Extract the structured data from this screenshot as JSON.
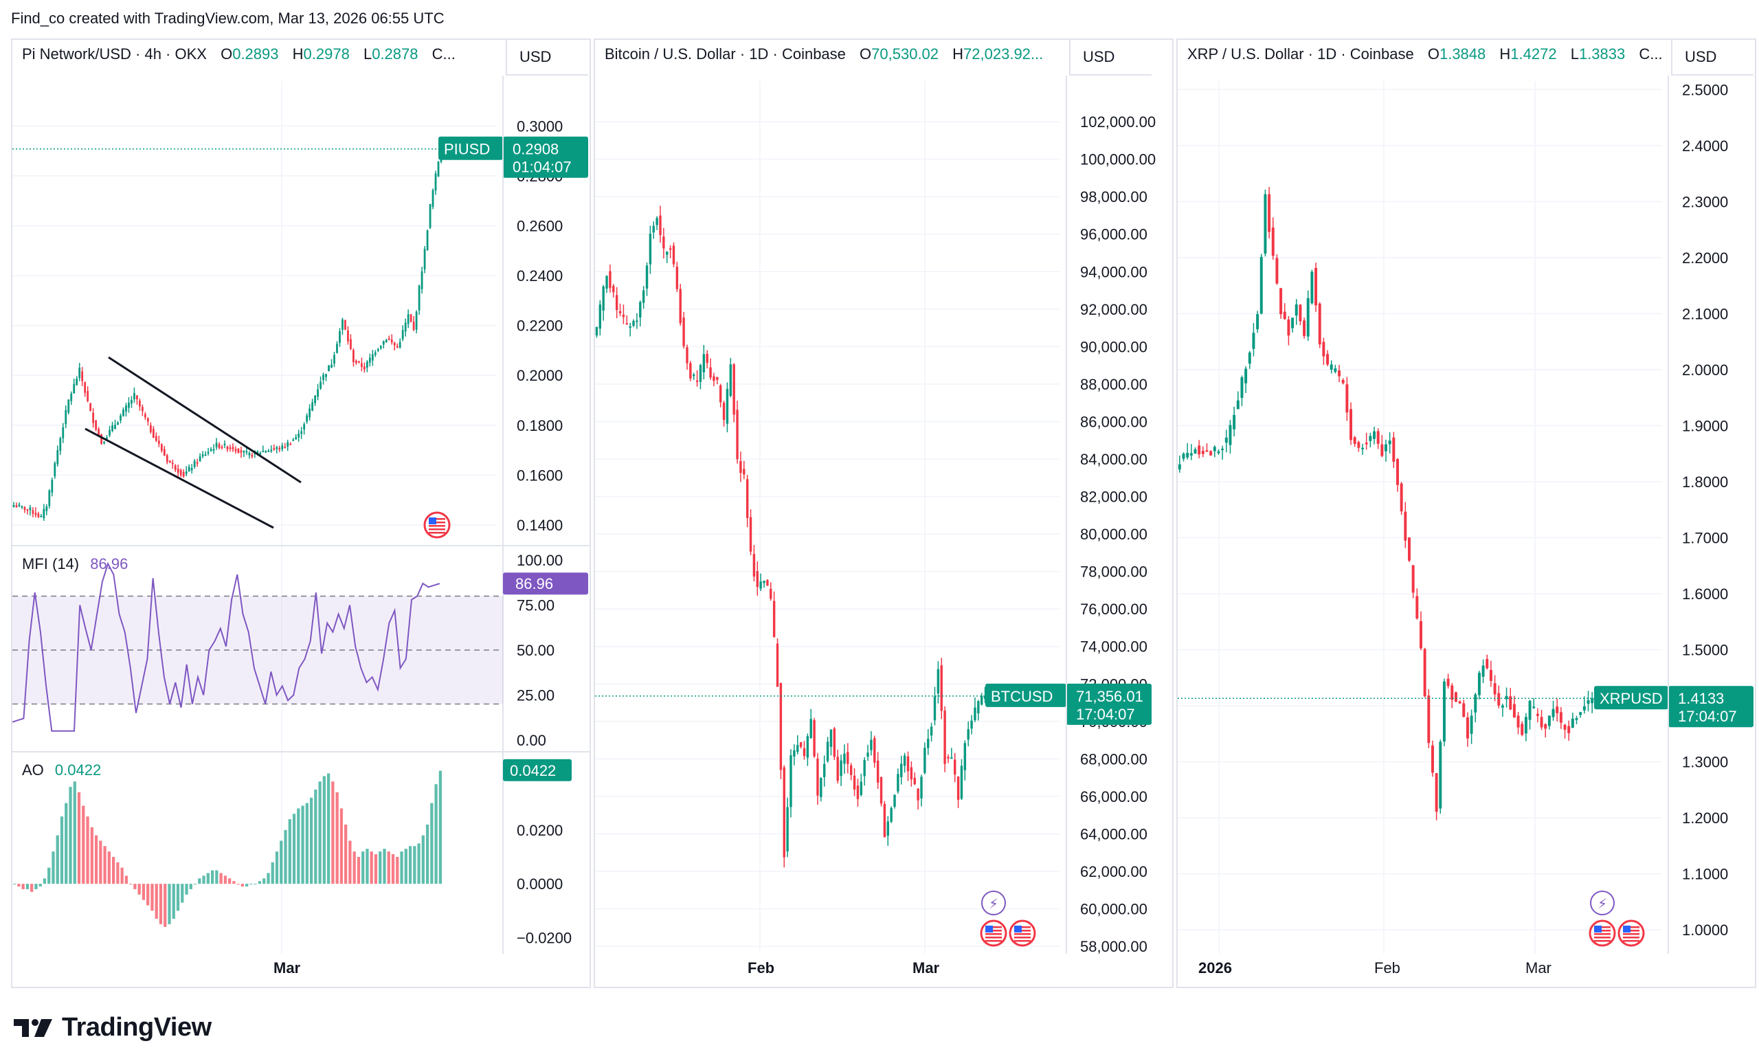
{
  "header": {
    "text": "Find_co created with TradingView.com, Mar 13, 2026 06:55 UTC"
  },
  "footer": {
    "brand": "TradingView"
  },
  "colors": {
    "up": "#089981",
    "down": "#f23645",
    "mfi": "#7e57c2",
    "grid": "#f0f3fa",
    "text": "#131722"
  },
  "panels": [
    {
      "title": "Pi Network/USD · 4h · OKX",
      "ohlc": [
        {
          "k": "O",
          "v": "0.2893"
        },
        {
          "k": "H",
          "v": "0.2978"
        },
        {
          "k": "L",
          "v": "0.2878"
        },
        {
          "k": "C",
          "v": "..."
        }
      ],
      "currency": "USD",
      "ticker": "PIUSD",
      "last_price": "0.2908",
      "countdown": "01:04:07",
      "price_ticks": [
        "0.3000",
        "0.2800",
        "0.2600",
        "0.2400",
        "0.2200",
        "0.2000",
        "0.1800",
        "0.1600",
        "0.1400"
      ],
      "x_ticks": [
        "Mar"
      ],
      "mfi": {
        "label": "MFI (14)",
        "value": "86.96",
        "ticks": [
          "100.00",
          "75.00",
          "50.00",
          "25.00",
          "0.00"
        ]
      },
      "ao": {
        "label": "AO",
        "value": "0.0422",
        "ticks": [
          "0.0200",
          "0.0000",
          "−0.0200"
        ]
      }
    },
    {
      "title": "Bitcoin / U.S. Dollar · 1D · Coinbase",
      "ohlc": [
        {
          "k": "O",
          "v": "70,530.02"
        },
        {
          "k": "H",
          "v": "72,023.92..."
        }
      ],
      "currency": "USD",
      "ticker": "BTCUSD",
      "last_price": "71,356.01",
      "countdown": "17:04:07",
      "price_ticks": [
        "102,000.00",
        "100,000.00",
        "98,000.00",
        "96,000.00",
        "94,000.00",
        "92,000.00",
        "90,000.00",
        "88,000.00",
        "86,000.00",
        "84,000.00",
        "82,000.00",
        "80,000.00",
        "78,000.00",
        "76,000.00",
        "74,000.00",
        "72,000.00",
        "70,000.00",
        "68,000.00",
        "66,000.00",
        "64,000.00",
        "62,000.00",
        "60,000.00",
        "58,000.00"
      ],
      "x_ticks": [
        "Feb",
        "Mar"
      ]
    },
    {
      "title": "XRP / U.S. Dollar · 1D · Coinbase",
      "ohlc": [
        {
          "k": "O",
          "v": "1.3848"
        },
        {
          "k": "H",
          "v": "1.4272"
        },
        {
          "k": "L",
          "v": "1.3833"
        },
        {
          "k": "C",
          "v": "..."
        }
      ],
      "currency": "USD",
      "ticker": "XRPUSD",
      "last_price": "1.4133",
      "countdown": "17:04:07",
      "price_ticks": [
        "2.5000",
        "2.4000",
        "2.3000",
        "2.2000",
        "2.1000",
        "2.0000",
        "1.9000",
        "1.8000",
        "1.7000",
        "1.6000",
        "1.5000",
        "1.4000",
        "1.3000",
        "1.2000",
        "1.1000",
        "1.0000"
      ],
      "x_ticks": [
        "2026",
        "Feb",
        "Mar"
      ]
    }
  ],
  "chart_data": [
    {
      "type": "candlestick",
      "title": "Pi Network/USD · 4h · OKX",
      "ylim": [
        0.132,
        0.318
      ],
      "close_path": [
        [
          0,
          0.148
        ],
        [
          6,
          0.146
        ],
        [
          10,
          0.143
        ],
        [
          12,
          0.148
        ],
        [
          16,
          0.17
        ],
        [
          20,
          0.19
        ],
        [
          24,
          0.202
        ],
        [
          28,
          0.185
        ],
        [
          32,
          0.173
        ],
        [
          38,
          0.182
        ],
        [
          44,
          0.192
        ],
        [
          50,
          0.178
        ],
        [
          56,
          0.166
        ],
        [
          62,
          0.16
        ],
        [
          68,
          0.167
        ],
        [
          74,
          0.172
        ],
        [
          80,
          0.171
        ],
        [
          86,
          0.168
        ],
        [
          92,
          0.17
        ],
        [
          98,
          0.171
        ],
        [
          104,
          0.176
        ],
        [
          108,
          0.186
        ],
        [
          112,
          0.198
        ],
        [
          116,
          0.205
        ],
        [
          120,
          0.222
        ],
        [
          124,
          0.206
        ],
        [
          128,
          0.203
        ],
        [
          132,
          0.21
        ],
        [
          136,
          0.215
        ],
        [
          140,
          0.211
        ],
        [
          144,
          0.224
        ],
        [
          146,
          0.218
        ],
        [
          148,
          0.235
        ],
        [
          150,
          0.25
        ],
        [
          152,
          0.268
        ],
        [
          154,
          0.28
        ],
        [
          156,
          0.292
        ]
      ],
      "last": 0.2908,
      "mfi": {
        "ylim": [
          -5,
          105
        ],
        "path": [
          [
            0,
            10
          ],
          [
            4,
            12
          ],
          [
            6,
            55
          ],
          [
            8,
            82
          ],
          [
            10,
            60
          ],
          [
            12,
            30
          ],
          [
            14,
            5
          ],
          [
            22,
            5
          ],
          [
            24,
            75
          ],
          [
            26,
            62
          ],
          [
            28,
            50
          ],
          [
            32,
            88
          ],
          [
            34,
            98
          ],
          [
            36,
            92
          ],
          [
            38,
            70
          ],
          [
            40,
            60
          ],
          [
            42,
            40
          ],
          [
            44,
            15
          ],
          [
            46,
            30
          ],
          [
            48,
            45
          ],
          [
            50,
            90
          ],
          [
            52,
            60
          ],
          [
            54,
            35
          ],
          [
            56,
            20
          ],
          [
            58,
            32
          ],
          [
            60,
            18
          ],
          [
            62,
            42
          ],
          [
            64,
            20
          ],
          [
            66,
            35
          ],
          [
            68,
            25
          ],
          [
            70,
            50
          ],
          [
            72,
            55
          ],
          [
            74,
            62
          ],
          [
            76,
            52
          ],
          [
            78,
            78
          ],
          [
            80,
            92
          ],
          [
            82,
            70
          ],
          [
            84,
            60
          ],
          [
            86,
            40
          ],
          [
            88,
            30
          ],
          [
            90,
            20
          ],
          [
            92,
            38
          ],
          [
            94,
            25
          ],
          [
            96,
            30
          ],
          [
            98,
            22
          ],
          [
            100,
            25
          ],
          [
            102,
            40
          ],
          [
            104,
            45
          ],
          [
            106,
            55
          ],
          [
            108,
            82
          ],
          [
            110,
            48
          ],
          [
            112,
            65
          ],
          [
            114,
            60
          ],
          [
            116,
            70
          ],
          [
            118,
            62
          ],
          [
            120,
            75
          ],
          [
            122,
            52
          ],
          [
            124,
            40
          ],
          [
            126,
            32
          ],
          [
            128,
            35
          ],
          [
            130,
            28
          ],
          [
            132,
            45
          ],
          [
            134,
            65
          ],
          [
            136,
            72
          ],
          [
            138,
            40
          ],
          [
            140,
            45
          ],
          [
            142,
            78
          ],
          [
            144,
            80
          ],
          [
            146,
            87
          ],
          [
            148,
            85
          ],
          [
            150,
            86
          ],
          [
            152,
            86.96
          ]
        ]
      },
      "ao": {
        "ylim": [
          -0.026,
          0.047
        ],
        "bars": [
          0,
          -0.001,
          -0.002,
          -0.002,
          -0.003,
          -0.002,
          -0.001,
          0.002,
          0.006,
          0.012,
          0.018,
          0.025,
          0.03,
          0.036,
          0.038,
          0.034,
          0.029,
          0.025,
          0.021,
          0.018,
          0.016,
          0.014,
          0.012,
          0.01,
          0.008,
          0.006,
          0.003,
          0.0,
          -0.002,
          -0.004,
          -0.006,
          -0.008,
          -0.01,
          -0.013,
          -0.015,
          -0.016,
          -0.015,
          -0.013,
          -0.01,
          -0.007,
          -0.004,
          -0.002,
          0.0,
          0.002,
          0.003,
          0.004,
          0.005,
          0.005,
          0.004,
          0.003,
          0.002,
          0.001,
          0.0,
          -0.001,
          -0.001,
          0.0,
          0.0,
          0.001,
          0.002,
          0.004,
          0.008,
          0.012,
          0.016,
          0.02,
          0.024,
          0.026,
          0.028,
          0.029,
          0.03,
          0.032,
          0.035,
          0.038,
          0.04,
          0.041,
          0.038,
          0.034,
          0.028,
          0.022,
          0.016,
          0.012,
          0.01,
          0.012,
          0.013,
          0.012,
          0.011,
          0.012,
          0.013,
          0.012,
          0.011,
          0.01,
          0.012,
          0.013,
          0.014,
          0.014,
          0.015,
          0.018,
          0.022,
          0.03,
          0.037,
          0.042
        ]
      }
    },
    {
      "type": "candlestick",
      "title": "Bitcoin / U.S. Dollar · 1D · Coinbase",
      "ylim": [
        57600,
        103800
      ],
      "close_path": [
        [
          0,
          91000
        ],
        [
          3,
          94000
        ],
        [
          6,
          92000
        ],
        [
          9,
          91000
        ],
        [
          12,
          91500
        ],
        [
          14,
          93000
        ],
        [
          16,
          96000
        ],
        [
          18,
          97000
        ],
        [
          20,
          95000
        ],
        [
          22,
          95500
        ],
        [
          24,
          93000
        ],
        [
          26,
          90000
        ],
        [
          28,
          88500
        ],
        [
          30,
          88000
        ],
        [
          32,
          89500
        ],
        [
          34,
          88500
        ],
        [
          36,
          88000
        ],
        [
          38,
          86000
        ],
        [
          40,
          89000
        ],
        [
          42,
          84000
        ],
        [
          44,
          83000
        ],
        [
          46,
          79000
        ],
        [
          48,
          77000
        ],
        [
          50,
          77500
        ],
        [
          52,
          76500
        ],
        [
          54,
          72000
        ],
        [
          56,
          63000
        ],
        [
          58,
          68000
        ],
        [
          60,
          69000
        ],
        [
          62,
          68000
        ],
        [
          64,
          70000
        ],
        [
          66,
          66000
        ],
        [
          68,
          68000
        ],
        [
          70,
          69500
        ],
        [
          72,
          67000
        ],
        [
          74,
          68500
        ],
        [
          76,
          67000
        ],
        [
          78,
          66000
        ],
        [
          80,
          68000
        ],
        [
          82,
          69000
        ],
        [
          84,
          67000
        ],
        [
          86,
          64000
        ],
        [
          88,
          65500
        ],
        [
          90,
          67000
        ],
        [
          92,
          68000
        ],
        [
          94,
          67000
        ],
        [
          96,
          66000
        ],
        [
          98,
          68500
        ],
        [
          100,
          70000
        ],
        [
          102,
          73000
        ],
        [
          104,
          68000
        ],
        [
          106,
          68000
        ],
        [
          108,
          66000
        ],
        [
          110,
          69000
        ],
        [
          112,
          70000
        ],
        [
          114,
          71000
        ],
        [
          116,
          71356
        ]
      ],
      "last": 71356.01
    },
    {
      "type": "candlestick",
      "title": "XRP / U.S. Dollar · 1D · Coinbase",
      "ylim": [
        0.945,
        2.52
      ],
      "close_path": [
        [
          0,
          1.84
        ],
        [
          4,
          1.86
        ],
        [
          8,
          1.85
        ],
        [
          12,
          1.87
        ],
        [
          16,
          1.98
        ],
        [
          20,
          2.1
        ],
        [
          22,
          2.31
        ],
        [
          24,
          2.2
        ],
        [
          26,
          2.1
        ],
        [
          28,
          2.07
        ],
        [
          30,
          2.12
        ],
        [
          32,
          2.06
        ],
        [
          34,
          2.18
        ],
        [
          36,
          2.05
        ],
        [
          38,
          2.0
        ],
        [
          40,
          2.0
        ],
        [
          42,
          1.97
        ],
        [
          44,
          1.88
        ],
        [
          46,
          1.86
        ],
        [
          48,
          1.87
        ],
        [
          50,
          1.89
        ],
        [
          52,
          1.85
        ],
        [
          54,
          1.88
        ],
        [
          56,
          1.8
        ],
        [
          58,
          1.7
        ],
        [
          60,
          1.6
        ],
        [
          62,
          1.5
        ],
        [
          64,
          1.33
        ],
        [
          66,
          1.22
        ],
        [
          68,
          1.45
        ],
        [
          70,
          1.42
        ],
        [
          72,
          1.4
        ],
        [
          74,
          1.35
        ],
        [
          76,
          1.42
        ],
        [
          78,
          1.48
        ],
        [
          80,
          1.44
        ],
        [
          82,
          1.4
        ],
        [
          84,
          1.42
        ],
        [
          86,
          1.38
        ],
        [
          88,
          1.35
        ],
        [
          90,
          1.4
        ],
        [
          92,
          1.38
        ],
        [
          94,
          1.36
        ],
        [
          96,
          1.4
        ],
        [
          98,
          1.37
        ],
        [
          100,
          1.36
        ],
        [
          102,
          1.38
        ],
        [
          104,
          1.4
        ],
        [
          106,
          1.41
        ]
      ],
      "last": 1.4133
    }
  ]
}
